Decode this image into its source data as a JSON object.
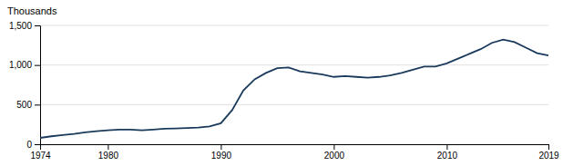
{
  "chart_data": {
    "type": "line",
    "ylabel": "Thousands",
    "x": [
      1974,
      1975,
      1976,
      1977,
      1978,
      1979,
      1980,
      1981,
      1982,
      1983,
      1984,
      1985,
      1986,
      1987,
      1988,
      1989,
      1990,
      1991,
      1992,
      1993,
      1994,
      1995,
      1996,
      1997,
      1998,
      1999,
      2000,
      2001,
      2002,
      2003,
      2004,
      2005,
      2006,
      2007,
      2008,
      2009,
      2010,
      2011,
      2012,
      2013,
      2014,
      2015,
      2016,
      2017,
      2018,
      2019
    ],
    "values": [
      80,
      100,
      115,
      130,
      150,
      165,
      175,
      185,
      185,
      175,
      185,
      195,
      200,
      205,
      210,
      225,
      265,
      430,
      680,
      820,
      900,
      960,
      970,
      920,
      900,
      880,
      850,
      860,
      850,
      840,
      850,
      870,
      900,
      940,
      980,
      980,
      1020,
      1080,
      1140,
      1200,
      1280,
      1320,
      1290,
      1220,
      1150,
      1120
    ],
    "color": "#1a3a5c",
    "xlim": [
      1974,
      2019
    ],
    "xticks": [
      1974,
      1980,
      1990,
      2000,
      2010,
      2019
    ],
    "ylim": [
      0,
      1500
    ],
    "yticks": [
      0,
      500,
      {
        "value": 1000,
        "label": "1,000"
      },
      {
        "value": 1500,
        "label": "1,500"
      }
    ],
    "grid": true
  }
}
